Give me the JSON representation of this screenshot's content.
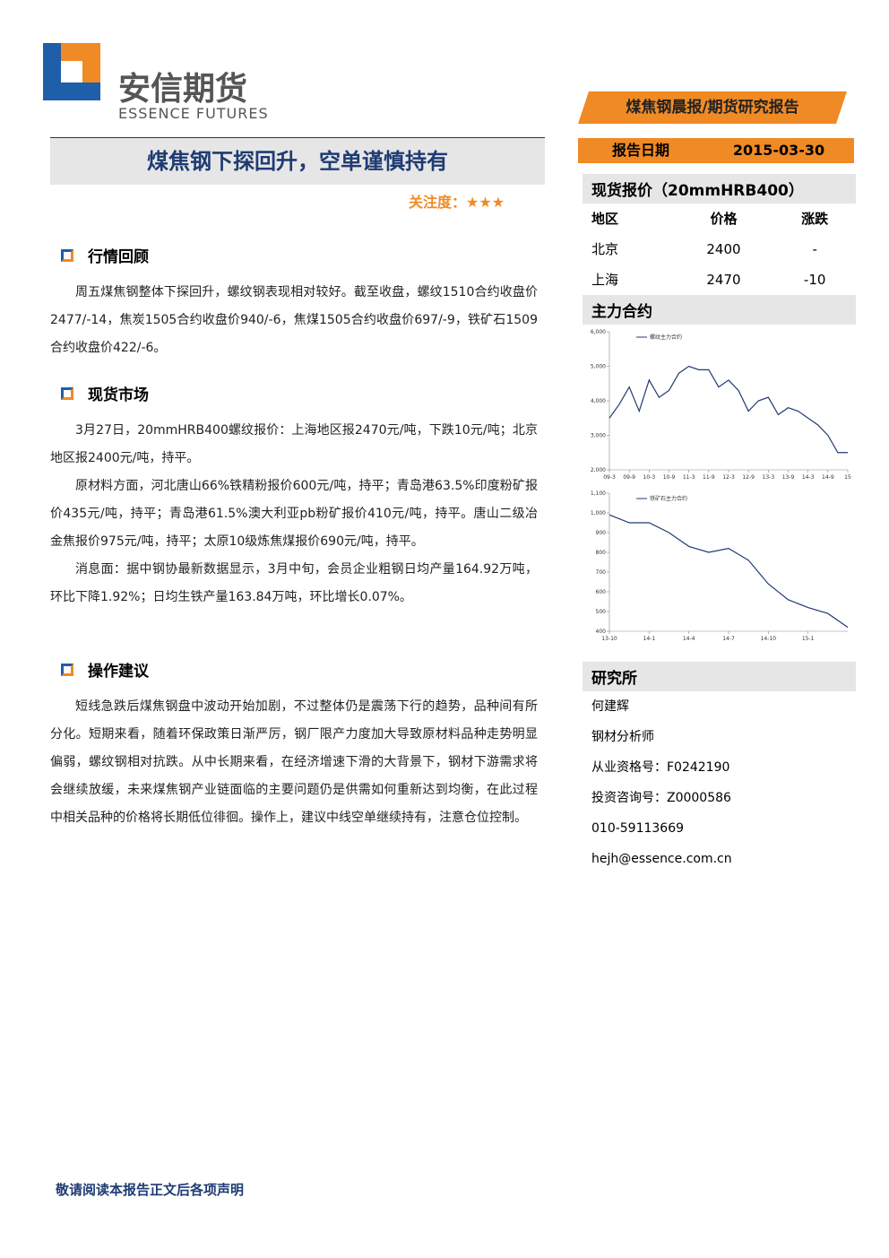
{
  "header": {
    "logo_cn": "安信期货",
    "logo_en": "ESSENCE FUTURES",
    "banner": "煤焦钢晨报/期货研究报告"
  },
  "title": "煤焦钢下探回升，空单谨慎持有",
  "attention": {
    "label": "关注度：",
    "stars": "★★★"
  },
  "sections": [
    {
      "heading": "行情回顾",
      "paragraphs": [
        "周五煤焦钢整体下探回升，螺纹钢表现相对较好。截至收盘，螺纹1510合约收盘价2477/-14，焦炭1505合约收盘价940/-6，焦煤1505合约收盘价697/-9，铁矿石1509合约收盘价422/-6。"
      ]
    },
    {
      "heading": "现货市场",
      "paragraphs": [
        "3月27日，20mmHRB400螺纹报价：上海地区报2470元/吨，下跌10元/吨；北京地区报2400元/吨，持平。",
        "原材料方面，河北唐山66%铁精粉报价600元/吨，持平；青岛港63.5%印度粉矿报价435元/吨，持平；青岛港61.5%澳大利亚pb粉矿报价410元/吨，持平。唐山二级冶金焦报价975元/吨，持平；太原10级炼焦煤报价690元/吨，持平。",
        "消息面：据中钢协最新数据显示，3月中旬，会员企业粗钢日均产量164.92万吨，环比下降1.92%；日均生铁产量163.84万吨，环比增长0.07%。"
      ]
    },
    {
      "heading": "操作建议",
      "paragraphs": [
        "短线急跌后煤焦钢盘中波动开始加剧，不过整体仍是震荡下行的趋势，品种间有所分化。短期来看，随着环保政策日渐严厉，钢厂限产力度加大导致原材料品种走势明显偏弱，螺纹钢相对抗跌。从中长期来看，在经济增速下滑的大背景下，钢材下游需求将会继续放缓，未来煤焦钢产业链面临的主要问题仍是供需如何重新达到均衡，在此过程中相关品种的价格将长期低位徘徊。操作上，建议中线空单继续持有，注意仓位控制。"
      ]
    }
  ],
  "sidebar": {
    "date_label": "报告日期",
    "date": "2015-03-30",
    "spot_title": "现货报价（20mmHRB400）",
    "table": {
      "header": [
        "地区",
        "价格",
        "涨跌"
      ],
      "rows": [
        [
          "北京",
          2400,
          "-"
        ],
        [
          "上海",
          2470,
          -10
        ]
      ]
    },
    "contract_title": "主力合约",
    "research_title": "研究所",
    "contacts": [
      "何建辉",
      "钢材分析师",
      "从业资格号：F0242190",
      "投资咨询号：Z0000586",
      "010-59113669",
      "hejh@essence.com.cn"
    ]
  },
  "chart_data": [
    {
      "type": "line",
      "categories": [
        "09-3",
        null,
        "09-9",
        null,
        "10-3",
        null,
        "10-9",
        null,
        "11-3",
        null,
        "11-9",
        null,
        "12-3",
        null,
        "12-9",
        null,
        "13-3",
        null,
        "13-9",
        null,
        "14-3",
        null,
        "14-9",
        null,
        "15"
      ],
      "series": [
        {
          "name": "螺纹主力合约",
          "color": "#1f3b73",
          "values": [
            3500,
            3900,
            4400,
            3700,
            4600,
            4100,
            4300,
            4800,
            5000,
            4900,
            4900,
            4400,
            4600,
            4300,
            3700,
            4000,
            4100,
            3600,
            3800,
            3700,
            3500,
            3300,
            3000,
            2500,
            2500
          ]
        }
      ],
      "ylim": [
        2000,
        6000
      ],
      "yticks": [
        {
          "value": 2000,
          "label": "2,000"
        },
        {
          "value": 3000,
          "label": "3,000"
        },
        {
          "value": 4000,
          "label": "4,000"
        },
        {
          "value": 5000,
          "label": "5,000"
        },
        {
          "value": 6000,
          "label": "6,000"
        }
      ]
    },
    {
      "type": "line",
      "categories": [
        "13-10",
        null,
        "14-1",
        null,
        "14-4",
        null,
        "14-7",
        null,
        "14-10",
        null,
        "15-1",
        null,
        null
      ],
      "series": [
        {
          "name": "铁矿石主力合约",
          "color": "#1f3b73",
          "values": [
            990,
            950,
            950,
            900,
            830,
            800,
            820,
            760,
            640,
            560,
            520,
            490,
            420
          ]
        }
      ],
      "ylim": [
        400,
        1100
      ],
      "yticks": [
        400,
        500,
        600,
        700,
        800,
        900,
        {
          "value": 1000,
          "label": "1,000"
        },
        {
          "value": 1100,
          "label": "1,100"
        }
      ]
    }
  ],
  "footer": "敬请阅读本报告正文后各项声明"
}
